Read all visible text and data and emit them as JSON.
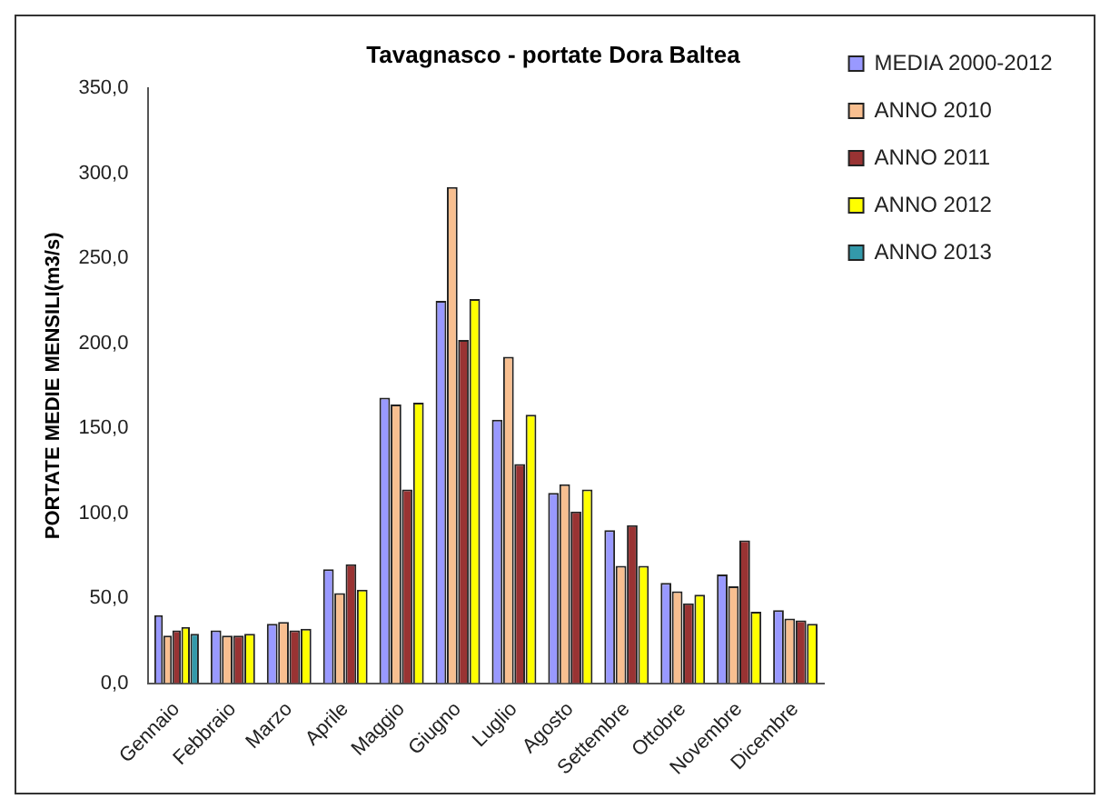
{
  "chart_data": {
    "type": "bar",
    "title": "Tavagnasco - portate Dora Baltea",
    "ylabel": "PORTATE MEDIE MENSILI(m3/s)",
    "categories": [
      "Gennaio",
      "Febbraio",
      "Marzo",
      "Aprile",
      "Maggio",
      "Giugno",
      "Luglio",
      "Agosto",
      "Settembre",
      "Ottobre",
      "Novembre",
      "Dicembre"
    ],
    "series": [
      {
        "name": "MEDIA 2000-2012",
        "color": "#9999ff",
        "values": [
          40,
          31,
          35,
          67,
          168,
          225,
          155,
          112,
          90,
          59,
          64,
          43
        ]
      },
      {
        "name": "ANNO 2010",
        "color": "#f8bf90",
        "values": [
          28,
          28,
          36,
          53,
          164,
          292,
          192,
          117,
          69,
          54,
          57,
          38
        ]
      },
      {
        "name": "ANNO 2011",
        "color": "#993333",
        "values": [
          31,
          28,
          31,
          70,
          114,
          202,
          129,
          101,
          93,
          47,
          84,
          37
        ]
      },
      {
        "name": "ANNO 2012",
        "color": "#ffff00",
        "values": [
          33,
          29,
          32,
          55,
          165,
          226,
          158,
          114,
          69,
          52,
          42,
          35
        ]
      },
      {
        "name": "ANNO 2013",
        "color": "#3399aa",
        "values": [
          29,
          null,
          null,
          null,
          null,
          null,
          null,
          null,
          null,
          null,
          null,
          null
        ]
      }
    ],
    "ylim": [
      0,
      350
    ],
    "yticks": [
      {
        "value": 0,
        "label": "0,0"
      },
      {
        "value": 50,
        "label": "50,0"
      },
      {
        "value": 100,
        "label": "100,0"
      },
      {
        "value": 150,
        "label": "150,0"
      },
      {
        "value": 200,
        "label": "200,0"
      },
      {
        "value": 250,
        "label": "250,0"
      },
      {
        "value": 300,
        "label": "300,0"
      },
      {
        "value": 350,
        "label": "350,0"
      }
    ],
    "grid": false,
    "legend": "top right"
  }
}
